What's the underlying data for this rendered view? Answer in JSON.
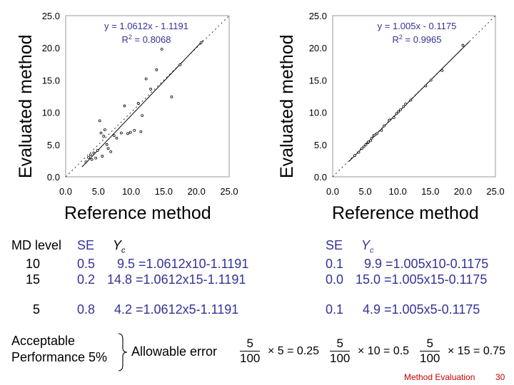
{
  "chart_data": [
    {
      "type": "scatter",
      "title": "",
      "xlabel": "Reference method",
      "ylabel": "Evaluated method",
      "xlim": [
        0,
        25
      ],
      "ylim": [
        0,
        25
      ],
      "xticks": [
        "0.0",
        "5.0",
        "10.0",
        "15.0",
        "20.0",
        "25.0"
      ],
      "yticks": [
        "0.0",
        "5.0",
        "10.0",
        "15.0",
        "20.0",
        "25.0"
      ],
      "equation": "y = 1.0612x - 1.1191",
      "r2_prefix": "R",
      "r2_exp": "2",
      "r2_value": " = 0.8068",
      "fit": {
        "slope": 1.0612,
        "intercept": -1.1191
      },
      "x": [
        3.1,
        3.5,
        3.8,
        4.0,
        4.3,
        4.6,
        4.9,
        5.2,
        5.4,
        5.6,
        5.8,
        6.0,
        6.3,
        6.5,
        6.9,
        7.4,
        7.8,
        8.5,
        9.0,
        9.5,
        9.9,
        10.5,
        11.1,
        11.5,
        11.7,
        12.3,
        13.0,
        13.9,
        14.7,
        16.2,
        17.5,
        20.7
      ],
      "y": [
        2.3,
        3.0,
        3.4,
        2.7,
        3.7,
        2.9,
        4.1,
        8.7,
        6.8,
        3.2,
        6.3,
        7.3,
        5.0,
        4.4,
        3.9,
        6.4,
        6.0,
        6.8,
        11.0,
        6.7,
        6.9,
        7.2,
        11.4,
        7.0,
        9.5,
        15.2,
        13.6,
        16.6,
        19.8,
        12.4,
        17.4,
        20.8
      ]
    },
    {
      "type": "scatter",
      "title": "",
      "xlabel": "Reference method",
      "ylabel": "Evaluated method",
      "xlim": [
        0,
        25
      ],
      "ylim": [
        0,
        25
      ],
      "xticks": [
        "0.0",
        "5.0",
        "10.0",
        "15.0",
        "20.0",
        "25.0"
      ],
      "yticks": [
        "0.0",
        "5.0",
        "10.0",
        "15.0",
        "20.0",
        "25.0"
      ],
      "equation": "y = 1.005x - 0.1175",
      "r2_prefix": "R",
      "r2_exp": "2",
      "r2_value": " = 0.9965",
      "fit": {
        "slope": 1.005,
        "intercept": -0.1175
      },
      "x": [
        3.4,
        4.0,
        4.5,
        4.8,
        5.1,
        5.4,
        5.5,
        5.8,
        6.0,
        6.3,
        6.5,
        6.8,
        7.5,
        7.9,
        8.7,
        9.4,
        9.8,
        10.1,
        10.4,
        10.9,
        11.2,
        12.0,
        14.3,
        15.1,
        16.8,
        20.0
      ],
      "y": [
        3.3,
        3.8,
        4.4,
        4.7,
        5.0,
        5.3,
        5.4,
        5.6,
        6.0,
        6.4,
        6.5,
        6.7,
        7.2,
        7.9,
        8.8,
        9.2,
        9.8,
        10.1,
        10.4,
        10.9,
        11.3,
        11.9,
        14.1,
        15.0,
        16.5,
        20.4
      ]
    }
  ],
  "table": {
    "header_md": "MD level",
    "header_se": "SE",
    "header_yc": "Y",
    "header_yc_sub": "c",
    "rows": [
      {
        "md": "10",
        "se1": "0.5",
        "calc1": "9.5 =1.0612x10-1.1191",
        "se2": "0.1",
        "calc2": "9.9 =1.005x10-0.1175"
      },
      {
        "md": "15",
        "se1": "0.2",
        "calc1": "14.8 =1.0612x15-1.1191",
        "se2": "0.0",
        "calc2": "15.0 =1.005x15-0.1175"
      },
      {
        "md": "5",
        "se1": "0.8",
        "calc1": "4.2 =1.0612x5-1.1191",
        "se2": "0.1",
        "calc2": "4.9 =1.005x5-0.1175"
      }
    ]
  },
  "acceptable": {
    "line1": "Acceptable",
    "line2": "Performance 5%",
    "allowable": "Allowable error"
  },
  "formulas": [
    {
      "num": "5",
      "den": "100",
      "rest": "× 5 = 0.25"
    },
    {
      "num": "5",
      "den": "100",
      "rest": "× 10 = 0.5"
    },
    {
      "num": "5",
      "den": "100",
      "rest": "× 15 = 0.75"
    }
  ],
  "footer": {
    "label": "Method Evaluation",
    "page": "30"
  },
  "colors": {
    "blue": "#333399",
    "red": "#cc0000"
  }
}
